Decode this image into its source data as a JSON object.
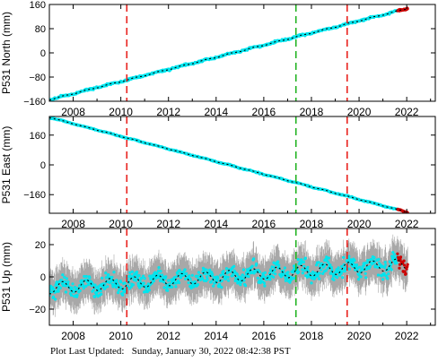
{
  "footer": {
    "label": "Plot Last Updated:",
    "timestamp": "Sunday, January 30, 2022 08:42:38 PST"
  },
  "colors": {
    "data_point": "#00e5ee",
    "model_line": "#000000",
    "error_bar": "#a8a8a8",
    "recent_point": "#cc0000",
    "event_red": "#e8231f",
    "event_green": "#22b322"
  },
  "chart_data": [
    {
      "type": "scatter",
      "ylabel": "P531 North (mm)",
      "xlim": [
        2007.0,
        2023.2
      ],
      "ylim": [
        -160,
        160
      ],
      "x_ticks": [
        2008,
        2010,
        2012,
        2014,
        2016,
        2018,
        2020,
        2022
      ],
      "y_ticks": [
        -160,
        -80,
        0,
        80,
        160
      ],
      "y_tick_labels": [
        "−160",
        "−80",
        "0",
        "80",
        "160"
      ],
      "trend": {
        "start": [
          2007.0,
          -155
        ],
        "end": [
          2022.05,
          147
        ]
      },
      "seasonal_amplitude": 1.5,
      "scatter_spread": 3,
      "error_bar": 3,
      "vertical_lines": [
        {
          "x": 2010.25,
          "color": "red"
        },
        {
          "x": 2017.35,
          "color": "green"
        },
        {
          "x": 2019.5,
          "color": "red"
        }
      ]
    },
    {
      "type": "scatter",
      "ylabel": "P531 East (mm)",
      "xlim": [
        2007.0,
        2023.2
      ],
      "ylim": [
        -260,
        260
      ],
      "x_ticks": [
        2008,
        2010,
        2012,
        2014,
        2016,
        2018,
        2020,
        2022
      ],
      "y_ticks": [
        -160,
        0,
        160
      ],
      "y_tick_labels": [
        "−160",
        "0",
        "160"
      ],
      "trend": {
        "start": [
          2007.0,
          255
        ],
        "end": [
          2022.05,
          -255
        ]
      },
      "seasonal_amplitude": 1.5,
      "scatter_spread": 3,
      "error_bar": 3,
      "vertical_lines": [
        {
          "x": 2010.25,
          "color": "red"
        },
        {
          "x": 2017.35,
          "color": "green"
        },
        {
          "x": 2019.5,
          "color": "red"
        }
      ]
    },
    {
      "type": "scatter",
      "ylabel": "P531 Up (mm)",
      "xlim": [
        2007.0,
        2023.2
      ],
      "ylim": [
        -30,
        30
      ],
      "x_ticks": [
        2008,
        2010,
        2012,
        2014,
        2016,
        2018,
        2020,
        2022
      ],
      "y_ticks": [
        -20,
        0,
        20
      ],
      "y_tick_labels": [
        "−20",
        "0",
        "20"
      ],
      "trend": {
        "start": [
          2007.0,
          -7
        ],
        "end": [
          2022.05,
          8
        ]
      },
      "seasonal_amplitude": 3.5,
      "scatter_spread": 5,
      "error_bar": 11,
      "vertical_lines": [
        {
          "x": 2010.25,
          "color": "red"
        },
        {
          "x": 2017.35,
          "color": "green"
        },
        {
          "x": 2019.5,
          "color": "red"
        }
      ]
    }
  ]
}
